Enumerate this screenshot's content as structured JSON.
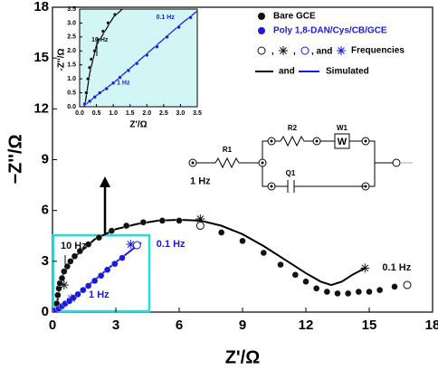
{
  "chart_data": {
    "type": "scatter",
    "xlabel": "Z'/Ω",
    "ylabel": "−Z''/Ω",
    "xlim": [
      0,
      18
    ],
    "ylim": [
      0,
      18
    ],
    "xticks": [
      0,
      3,
      6,
      9,
      12,
      15,
      18
    ],
    "yticks": [
      0,
      3,
      6,
      9,
      12,
      15,
      18
    ],
    "series": [
      {
        "name": "Bare GCE",
        "color": "#111111",
        "x": [
          0.2,
          0.25,
          0.3,
          0.35,
          0.45,
          0.55,
          0.7,
          0.85,
          1.05,
          1.3,
          1.7,
          2.2,
          2.8,
          3.5,
          4.3,
          5.2,
          6.0,
          8.0,
          9.0,
          10.0,
          10.8,
          11.5,
          12.0,
          12.5,
          13.0,
          13.5,
          14.0,
          14.5,
          15.0,
          15.5,
          16.2
        ],
        "values": [
          0.5,
          1.0,
          1.4,
          1.7,
          2.0,
          2.4,
          2.7,
          3.0,
          3.3,
          3.6,
          4.0,
          4.4,
          4.8,
          5.1,
          5.3,
          5.4,
          5.4,
          4.7,
          4.2,
          3.5,
          2.8,
          2.2,
          1.8,
          1.4,
          1.2,
          1.1,
          1.1,
          1.2,
          1.2,
          1.3,
          1.5
        ]
      },
      {
        "name": "Poly 1,8-DAN/Cys/CB/GCE",
        "color": "#1a1adc",
        "x": [
          0.15,
          0.3,
          0.45,
          0.6,
          0.8,
          1.0,
          1.2,
          1.45,
          1.7,
          2.0,
          2.3,
          2.6,
          2.95,
          3.3
        ],
        "values": [
          0.1,
          0.2,
          0.35,
          0.5,
          0.65,
          0.85,
          1.05,
          1.3,
          1.55,
          1.85,
          2.15,
          2.5,
          2.85,
          3.2
        ]
      }
    ],
    "fit_lines": [
      {
        "color": "#000000",
        "x": [
          0.15,
          0.3,
          0.5,
          1.0,
          2.0,
          3.0,
          4.0,
          5.0,
          6.0,
          7.0,
          8.0,
          9.0,
          10.0,
          11.0,
          12.0,
          12.7,
          13.2,
          13.7,
          14.2,
          14.8
        ],
        "values": [
          0,
          1.2,
          2.2,
          3.2,
          4.3,
          4.9,
          5.2,
          5.4,
          5.45,
          5.4,
          5.1,
          4.6,
          3.9,
          3.1,
          2.3,
          1.8,
          1.6,
          1.8,
          2.2,
          2.6
        ]
      },
      {
        "color": "#1a1adc",
        "x": [
          0.1,
          0.5,
          1.0,
          2.0,
          3.0,
          4.2
        ],
        "values": [
          0,
          0.4,
          0.85,
          1.9,
          2.95,
          4.1
        ]
      }
    ],
    "frequency_markers": [
      {
        "marker": "asterisk",
        "color": "#111111",
        "x": 7.0,
        "y": 5.5
      },
      {
        "marker": "circle",
        "color": "#111111",
        "x": 7.0,
        "y": 5.1
      },
      {
        "marker": "asterisk",
        "color": "#111111",
        "x": 14.8,
        "y": 2.6
      },
      {
        "marker": "circle",
        "color": "#111111",
        "x": 16.8,
        "y": 1.6
      },
      {
        "marker": "asterisk",
        "color": "#111111",
        "x": 0.55,
        "y": 1.6
      },
      {
        "marker": "asterisk",
        "color": "#1a1adc",
        "x": 3.7,
        "y": 4.0
      },
      {
        "marker": "circle",
        "color": "#1a1adc",
        "x": 4.0,
        "y": 3.95
      },
      {
        "marker": "asterisk",
        "color": "#1a1adc",
        "x": 0.9,
        "y": 0.8
      }
    ],
    "annotations": [
      {
        "text": "1 Hz",
        "color": "#111111",
        "x": 7.0,
        "y": 7.7
      },
      {
        "text": "0.1 Hz",
        "color": "#111111",
        "x": 16.3,
        "y": 2.6
      },
      {
        "text": "10 Hz",
        "color": "#111111",
        "x": 1.0,
        "y": 3.9
      },
      {
        "text": "0.1 Hz",
        "color": "#1a1adc",
        "x": 5.6,
        "y": 4.0
      },
      {
        "text": "1 Hz",
        "color": "#1a1adc",
        "x": 2.2,
        "y": 1.0
      }
    ],
    "legend": {
      "frequencies": [
        ",",
        ",",
        ", and",
        "Frequencies"
      ],
      "simulated": [
        "and",
        "Simulated"
      ]
    },
    "circuit": {
      "R1": "R1",
      "R2": "R2",
      "W1": "W1",
      "W": "W",
      "Q1": "Q1"
    },
    "inset": {
      "xlabel": "Z'/Ω",
      "ylabel": "-Z''/Ω",
      "xlim": [
        0,
        3.5
      ],
      "ylim": [
        0,
        3.5
      ],
      "xticks": [
        {
          "value": 0,
          "label": "0.0"
        },
        {
          "value": 0.5,
          "label": "0.5"
        },
        {
          "value": 1,
          "label": "1.0"
        },
        {
          "value": 1.5,
          "label": "1.5"
        },
        {
          "value": 2,
          "label": "2.0"
        },
        {
          "value": 2.5,
          "label": "2.5"
        },
        {
          "value": 3,
          "label": "3.0"
        },
        {
          "value": 3.5,
          "label": "3.5"
        }
      ],
      "yticks": [
        {
          "value": 0,
          "label": "0.0"
        },
        {
          "value": 0.5,
          "label": "0.5"
        },
        {
          "value": 1,
          "label": "1.0"
        },
        {
          "value": 1.5,
          "label": "1.5"
        },
        {
          "value": 2,
          "label": "2.0"
        },
        {
          "value": 2.5,
          "label": "2.5"
        },
        {
          "value": 3,
          "label": "3.0"
        },
        {
          "value": 3.5,
          "label": "3.5"
        }
      ],
      "annotations": [
        {
          "text": "10 Hz",
          "color": "#111111",
          "x": 0.6,
          "y": 2.4
        },
        {
          "text": "0.1 Hz",
          "color": "#1a1adc",
          "x": 2.55,
          "y": 3.2
        },
        {
          "text": "1 Hz",
          "color": "#1a1adc",
          "x": 1.3,
          "y": 0.85
        }
      ]
    }
  }
}
